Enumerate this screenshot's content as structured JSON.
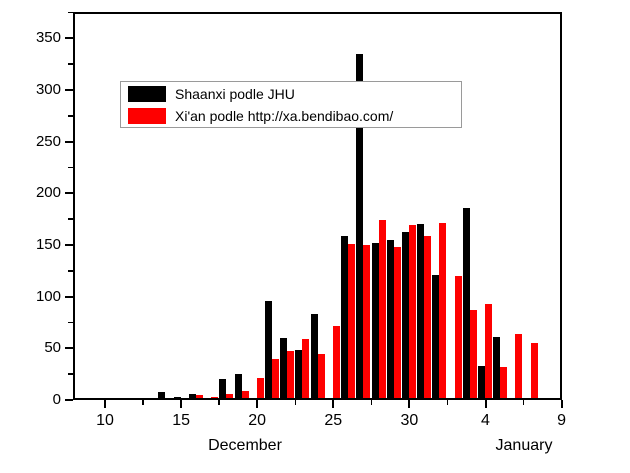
{
  "figure": {
    "background": "#ffffff",
    "axis_color": "#000000"
  },
  "chart_data": {
    "type": "bar",
    "title": "",
    "xlabel_left": "December",
    "xlabel_right": "January",
    "ylabel": "",
    "grid": false,
    "legend_position": "top-left-inside",
    "ylim": [
      0,
      375
    ],
    "xlim_days": [
      7.9,
      40
    ],
    "categories": [
      "Dec 9",
      "Dec 10",
      "Dec 11",
      "Dec 12",
      "Dec 13",
      "Dec 14",
      "Dec 15",
      "Dec 16",
      "Dec 17",
      "Dec 18",
      "Dec 19",
      "Dec 20",
      "Dec 21",
      "Dec 22",
      "Dec 23",
      "Dec 24",
      "Dec 25",
      "Dec 26",
      "Dec 27",
      "Dec 28",
      "Dec 29",
      "Dec 30",
      "Dec 31",
      "Jan 1",
      "Jan 2",
      "Jan 3",
      "Jan 4",
      "Jan 5",
      "Jan 6",
      "Jan 7"
    ],
    "x_days": [
      9,
      10,
      11,
      12,
      13,
      14,
      15,
      16,
      17,
      18,
      19,
      20,
      21,
      22,
      23,
      24,
      25,
      26,
      27,
      28,
      29,
      30,
      31,
      32,
      33,
      34,
      35,
      36,
      37,
      38
    ],
    "series": [
      {
        "name": "Shaanxi podle JHU",
        "color": "#000000",
        "values": [
          2,
          2,
          1,
          1,
          2,
          8,
          3,
          6,
          1,
          20,
          25,
          1,
          96,
          60,
          48,
          83,
          1,
          159,
          335,
          152,
          155,
          163,
          170,
          121,
          0,
          186,
          33,
          61,
          0,
          0
        ]
      },
      {
        "name": "Xi'an podle http://xa.bendibao.com/",
        "color": "#fe0000",
        "values": [
          1,
          1,
          1,
          1,
          1,
          2,
          2,
          5,
          3,
          6,
          9,
          21,
          40,
          47,
          59,
          45,
          72,
          151,
          150,
          174,
          148,
          169,
          159,
          171,
          120,
          87,
          93,
          32,
          64,
          55
        ]
      }
    ],
    "axes": {
      "y_major_ticks": [
        0,
        50,
        100,
        150,
        200,
        250,
        300,
        350
      ],
      "y_minor_ticks": [
        25,
        75,
        125,
        175,
        225,
        275,
        325,
        375
      ],
      "x_major_ticks": [
        {
          "day": 10,
          "label": "10"
        },
        {
          "day": 15,
          "label": "15"
        },
        {
          "day": 20,
          "label": "20"
        },
        {
          "day": 25,
          "label": "25"
        },
        {
          "day": 30,
          "label": "30"
        },
        {
          "day": 35,
          "label": "4"
        },
        {
          "day": 40,
          "label": "9"
        }
      ],
      "x_minor_tick_days": [
        12.5,
        17.5,
        22.5,
        27.5,
        32.5,
        37.5
      ]
    }
  }
}
